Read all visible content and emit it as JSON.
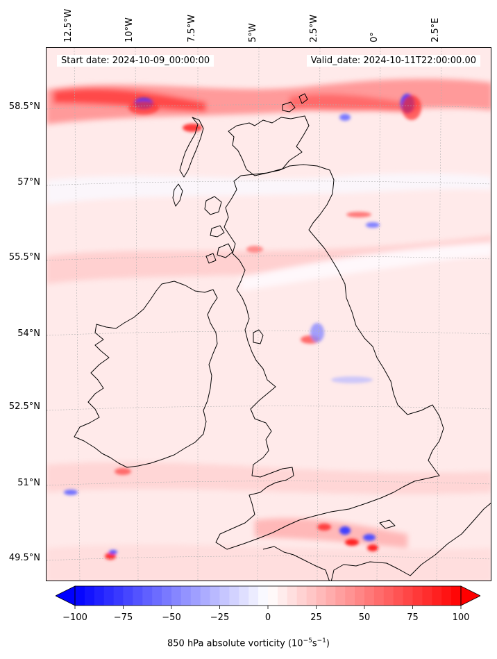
{
  "map": {
    "start_label": "Start date: 2024-10-09_00:00:00",
    "valid_label": "Valid_date: 2024-10-11T22:00:00.00",
    "lon_labels": [
      "12.5°W",
      "10°W",
      "7.5°W",
      "5°W",
      "2.5°W",
      "0°",
      "2.5°E"
    ],
    "lat_labels": [
      "58.5°N",
      "57°N",
      "55.5°N",
      "54°N",
      "52.5°N",
      "51°N",
      "49.5°N"
    ]
  },
  "colorbar": {
    "ticks": [
      "−100",
      "−75",
      "−50",
      "−25",
      "0",
      "25",
      "50",
      "75",
      "100"
    ],
    "title_main": "850 hPa absolute vorticity (10",
    "title_exp1": "−5",
    "title_mid": "s",
    "title_exp2": "−1",
    "title_end": ")",
    "colors": {
      "min": "#0000ff",
      "mid": "#ffffff",
      "max": "#ff0000"
    },
    "vmin": -100,
    "vmax": 100
  }
}
